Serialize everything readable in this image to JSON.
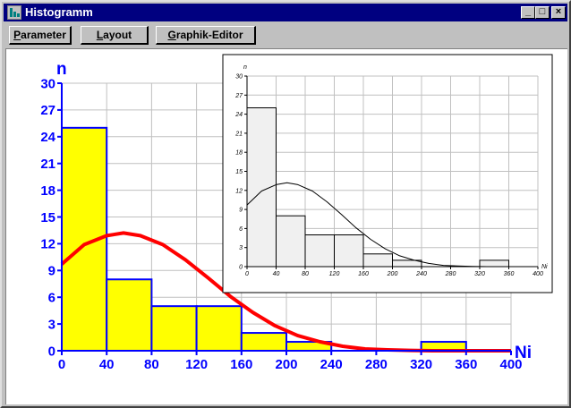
{
  "window": {
    "title": "Histogramm",
    "controls": {
      "minimize": "_",
      "maximize": "□",
      "close": "×"
    }
  },
  "toolbar": {
    "parameter": {
      "accel": "P",
      "rest": "arameter"
    },
    "layout": {
      "accel": "L",
      "rest": "ayout"
    },
    "graphik": {
      "accel": "G",
      "rest": "raphik-Editor"
    }
  },
  "colors": {
    "bar_fill_main": "#ffff00",
    "bar_stroke_main": "#0000ff",
    "curve_main": "#ff0000",
    "axis_main": "#0000ff",
    "bar_fill_inset": "#f0f0f0",
    "inset_ink": "#000000"
  },
  "chart_data": [
    {
      "type": "bar",
      "title": "",
      "xlabel": "Ni",
      "ylabel": "n",
      "bin_edges": [
        0,
        40,
        80,
        120,
        160,
        200,
        240,
        280,
        320,
        360,
        400
      ],
      "values": [
        25,
        8,
        5,
        5,
        2,
        1,
        0,
        0,
        1,
        0
      ],
      "xlim": [
        0,
        400
      ],
      "ylim": [
        0,
        30
      ],
      "x_ticks": [
        "0",
        "40",
        "80",
        "120",
        "160",
        "200",
        "240",
        "280",
        "320",
        "360",
        "400"
      ],
      "y_ticks": [
        "0",
        "3",
        "6",
        "9",
        "12",
        "15",
        "18",
        "21",
        "24",
        "27",
        "30"
      ],
      "grid": true,
      "overlay_curve": {
        "type": "line",
        "x": [
          0,
          20,
          40,
          55,
          70,
          90,
          110,
          130,
          150,
          170,
          190,
          210,
          230,
          250,
          270,
          290,
          310,
          330,
          360,
          400
        ],
        "y": [
          9.7,
          11.9,
          12.9,
          13.2,
          12.9,
          11.9,
          10.2,
          8.2,
          6.1,
          4.3,
          2.8,
          1.7,
          1.0,
          0.5,
          0.2,
          0.1,
          0.04,
          0.0,
          0.0,
          0.0
        ]
      }
    },
    {
      "type": "bar",
      "title": "",
      "xlabel": "Ni",
      "ylabel": "n",
      "bin_edges": [
        0,
        40,
        80,
        120,
        160,
        200,
        240,
        280,
        320,
        360,
        400
      ],
      "values": [
        25,
        8,
        5,
        5,
        2,
        1,
        0,
        0,
        1,
        0
      ],
      "xlim": [
        0,
        400
      ],
      "ylim": [
        0,
        30
      ],
      "x_ticks": [
        "0",
        "40",
        "80",
        "120",
        "160",
        "200",
        "240",
        "280",
        "320",
        "360",
        "400"
      ],
      "y_ticks": [
        "0",
        "3",
        "6",
        "9",
        "12",
        "15",
        "18",
        "21",
        "24",
        "27",
        "30"
      ],
      "grid": true,
      "overlay_curve": {
        "type": "line",
        "x": [
          0,
          20,
          40,
          55,
          70,
          90,
          110,
          130,
          150,
          170,
          190,
          210,
          230,
          250,
          270,
          290,
          310,
          330,
          360,
          400
        ],
        "y": [
          9.7,
          11.9,
          12.9,
          13.2,
          12.9,
          11.9,
          10.2,
          8.2,
          6.1,
          4.3,
          2.8,
          1.7,
          1.0,
          0.5,
          0.2,
          0.1,
          0.04,
          0.0,
          0.0,
          0.0
        ]
      }
    }
  ]
}
